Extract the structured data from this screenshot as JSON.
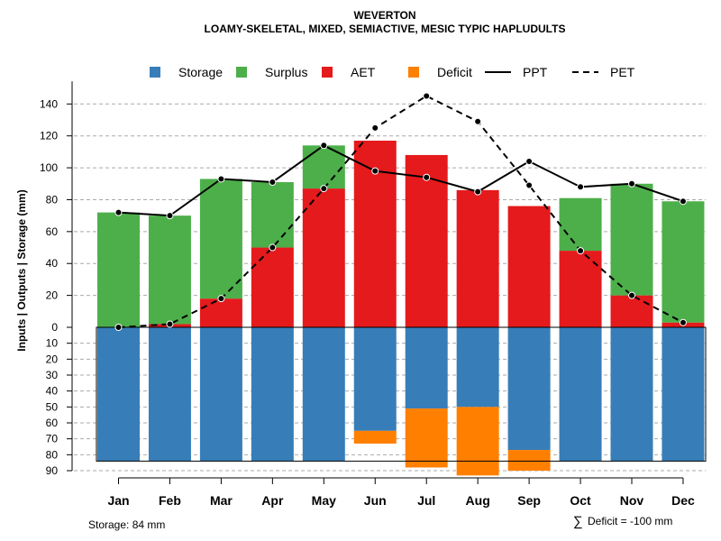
{
  "chart_data": {
    "type": "bar",
    "title": "WEVERTON",
    "subtitle": "LOAMY-SKELETAL, MIXED, SEMIACTIVE, MESIC TYPIC HAPLUDULTS",
    "ylabel": "Inputs | Outputs | Storage    (mm)",
    "categories": [
      "Jan",
      "Feb",
      "Mar",
      "Apr",
      "May",
      "Jun",
      "Jul",
      "Aug",
      "Sep",
      "Oct",
      "Nov",
      "Dec"
    ],
    "ylim_upper": [
      0,
      150
    ],
    "ylim_lower": [
      0,
      90
    ],
    "yticks_upper": [
      "0",
      "20",
      "40",
      "60",
      "80",
      "100",
      "120",
      "140"
    ],
    "yticks_lower": [
      "10",
      "20",
      "30",
      "40",
      "50",
      "60",
      "70",
      "80",
      "90"
    ],
    "storage_capacity": 84,
    "series": [
      {
        "name": "AET",
        "values": [
          0,
          2,
          18,
          50,
          87,
          117,
          108,
          86,
          76,
          48,
          20,
          3
        ]
      },
      {
        "name": "Surplus",
        "values": [
          72,
          68,
          75,
          41,
          27,
          0,
          0,
          0,
          0,
          33,
          70,
          76
        ]
      },
      {
        "name": "Storage",
        "values": [
          84,
          84,
          84,
          84,
          84,
          65,
          51,
          50,
          77,
          84,
          84,
          84
        ]
      },
      {
        "name": "Deficit",
        "values": [
          0,
          0,
          0,
          0,
          0,
          8,
          37,
          43,
          13,
          0,
          0,
          0
        ]
      },
      {
        "name": "PPT",
        "values": [
          72,
          70,
          93,
          91,
          114,
          98,
          94,
          85,
          104,
          88,
          90,
          79
        ]
      },
      {
        "name": "PET",
        "values": [
          0,
          2,
          18,
          50,
          87,
          125,
          145,
          129,
          89,
          48,
          20,
          3
        ]
      }
    ],
    "legend": {
      "position": "top",
      "items": [
        {
          "label": "Storage",
          "kind": "box",
          "color": "#377EB8"
        },
        {
          "label": "Surplus",
          "kind": "box",
          "color": "#4DAF4A"
        },
        {
          "label": "AET",
          "kind": "box",
          "color": "#E41A1C"
        },
        {
          "label": "Deficit",
          "kind": "box",
          "color": "#FF7F00"
        },
        {
          "label": "PPT",
          "kind": "solid-line",
          "color": "#000000"
        },
        {
          "label": "PET",
          "kind": "dashed-line",
          "color": "#000000"
        }
      ]
    },
    "colors": {
      "storage": "#377EB8",
      "surplus": "#4DAF4A",
      "aet": "#E41A1C",
      "deficit": "#FF7F00",
      "grid": "#aaaaaa"
    },
    "annotations": {
      "storage_note": "Storage: 84 mm",
      "deficit_note": "Deficit = -100 mm",
      "deficit_symbol": "∑"
    }
  }
}
